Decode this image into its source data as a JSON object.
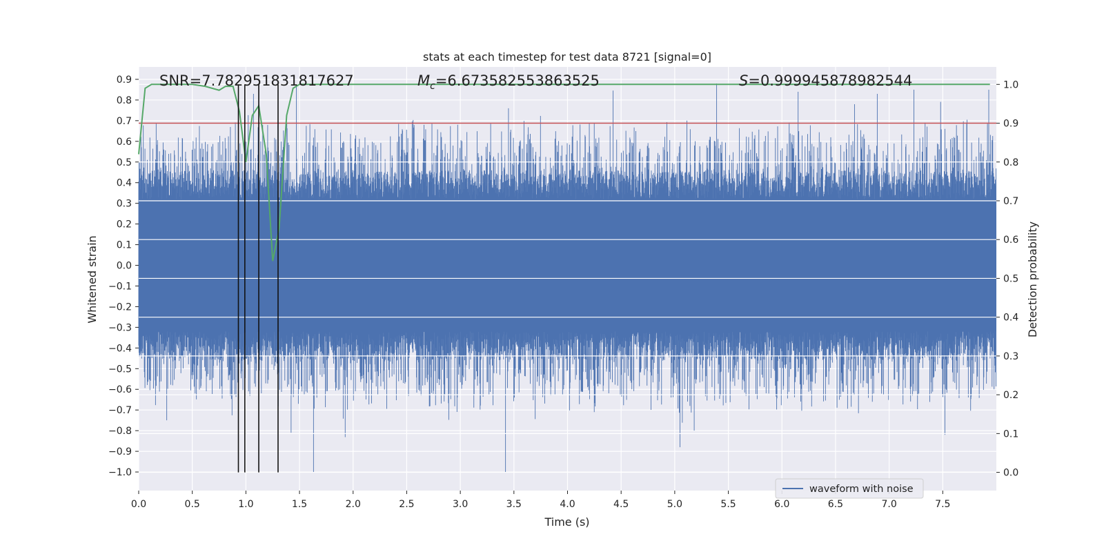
{
  "chart_data": {
    "type": "line",
    "title": "stats at each timestep for test data 8721 [signal=0]",
    "xlabel": "Time (s)",
    "ylabel_left": "Whitened strain",
    "ylabel_right": "Detection probability",
    "xlim": [
      0.0,
      8.0
    ],
    "ylim_left": [
      -1.09,
      0.96
    ],
    "ylim_right": [
      -0.047,
      1.045
    ],
    "x_ticks": [
      0.0,
      0.5,
      1.0,
      1.5,
      2.0,
      2.5,
      3.0,
      3.5,
      4.0,
      4.5,
      5.0,
      5.5,
      6.0,
      6.5,
      7.0,
      7.5
    ],
    "x_tick_labels": [
      "0.0",
      "0.5",
      "1.0",
      "1.5",
      "2.0",
      "2.5",
      "3.0",
      "3.5",
      "4.0",
      "4.5",
      "5.0",
      "5.5",
      "6.0",
      "6.5",
      "7.0",
      "7.5"
    ],
    "y_left_ticks": [
      0.9,
      0.8,
      0.7,
      0.6,
      0.5,
      0.4,
      0.3,
      0.2,
      0.1,
      0.0,
      -0.1,
      -0.2,
      -0.3,
      -0.4,
      -0.5,
      -0.6,
      -0.7,
      -0.8,
      -0.9,
      -1.0
    ],
    "y_left_tick_labels": [
      "0.9",
      "0.8",
      "0.7",
      "0.6",
      "0.5",
      "0.4",
      "0.3",
      "0.2",
      "0.1",
      "0.0",
      "−0.1",
      "−0.2",
      "−0.3",
      "−0.4",
      "−0.5",
      "−0.6",
      "−0.7",
      "−0.8",
      "−0.9",
      "−1.0"
    ],
    "y_right_ticks": [
      1.0,
      0.9,
      0.8,
      0.7,
      0.6,
      0.5,
      0.4,
      0.3,
      0.2,
      0.1,
      0.0
    ],
    "y_right_tick_labels": [
      "1.0",
      "0.9",
      "0.8",
      "0.7",
      "0.6",
      "0.5",
      "0.4",
      "0.3",
      "0.2",
      "0.1",
      "0.0"
    ],
    "waveform": {
      "name": "waveform with noise",
      "color": "#4c72b0",
      "sample_rate": 2048,
      "duration": 8.0,
      "typical_envelope": [
        -0.32,
        0.32
      ],
      "observed_min": -1.0,
      "observed_max": 0.88,
      "spikes": [
        {
          "t": 1.63,
          "v": -1.0
        },
        {
          "t": 3.42,
          "v": -1.0
        },
        {
          "t": 5.39,
          "v": 0.88
        },
        {
          "t": 1.47,
          "v": 0.87
        },
        {
          "t": 1.42,
          "v": -0.81
        },
        {
          "t": 5.05,
          "v": -0.88
        },
        {
          "t": 7.52,
          "v": -0.82
        },
        {
          "t": 7.93,
          "v": 0.85
        },
        {
          "t": 3.45,
          "v": 0.76
        },
        {
          "t": 7.23,
          "v": 0.85
        },
        {
          "t": 1.07,
          "v": 0.83
        },
        {
          "t": 6.15,
          "v": 0.84
        },
        {
          "t": 6.89,
          "v": 0.83
        },
        {
          "t": 0.26,
          "v": -0.75
        },
        {
          "t": 5.18,
          "v": -0.8
        }
      ]
    },
    "threshold": {
      "value": 0.9,
      "axis": "right",
      "color": "#c44e52"
    },
    "detection_probability": {
      "axis": "right",
      "color": "#55a868",
      "t": [
        0.0,
        0.06,
        0.12,
        0.25,
        0.5,
        0.62,
        0.75,
        0.81,
        0.88,
        0.94,
        1.0,
        1.06,
        1.12,
        1.19,
        1.25,
        1.31,
        1.38,
        1.44,
        1.5,
        1.56,
        2.0,
        3.0,
        4.0,
        5.0,
        6.0,
        7.0,
        7.94
      ],
      "p": [
        0.82,
        0.99,
        1.0,
        1.0,
        1.0,
        0.995,
        0.985,
        0.995,
        0.995,
        0.93,
        0.8,
        0.92,
        0.945,
        0.82,
        0.545,
        0.63,
        0.92,
        0.99,
        1.0,
        1.0,
        1.0,
        1.0,
        1.0,
        1.0,
        1.0,
        1.0,
        1.0
      ]
    },
    "vertical_lines": [
      0.93,
      0.99,
      1.12,
      1.3
    ],
    "annotations": {
      "snr": "SNR=7.782951831817627",
      "mc_symbol": "M",
      "mc_subscript": "c",
      "mc_value": "=6.673582553863525",
      "s_symbol": "S",
      "s_value": "=0.999945878982544"
    },
    "legend": {
      "label": "waveform with noise",
      "location": "lower-right"
    }
  }
}
